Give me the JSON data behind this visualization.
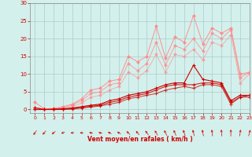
{
  "xlabel": "Vent moyen/en rafales ( km/h )",
  "xlim": [
    -0.5,
    23
  ],
  "ylim": [
    -1,
    30
  ],
  "yticks": [
    0,
    5,
    10,
    15,
    20,
    25,
    30
  ],
  "xticks": [
    0,
    1,
    2,
    3,
    4,
    5,
    6,
    7,
    8,
    9,
    10,
    11,
    12,
    13,
    14,
    15,
    16,
    17,
    18,
    19,
    20,
    21,
    22,
    23
  ],
  "background_color": "#d4f0ec",
  "grid_color": "#aacccc",
  "line_color_light": "#ff8888",
  "line_color_dark": "#cc0000",
  "series": {
    "light1": [
      2.0,
      0.2,
      0.3,
      0.8,
      1.5,
      3.0,
      5.5,
      6.0,
      8.0,
      8.5,
      15.0,
      13.5,
      15.0,
      23.5,
      14.5,
      20.5,
      19.0,
      26.5,
      18.5,
      23.0,
      21.5,
      23.0,
      10.0,
      10.5
    ],
    "light2": [
      0.5,
      0.1,
      0.2,
      0.5,
      1.2,
      2.5,
      4.5,
      5.0,
      7.0,
      7.5,
      13.0,
      11.0,
      13.0,
      19.0,
      12.5,
      18.0,
      17.0,
      20.0,
      16.5,
      21.5,
      20.0,
      22.5,
      9.0,
      10.5
    ],
    "light3": [
      0.0,
      0.0,
      0.1,
      0.3,
      0.8,
      1.8,
      3.5,
      4.0,
      5.5,
      6.5,
      10.5,
      9.0,
      11.0,
      15.5,
      10.5,
      15.5,
      15.0,
      17.0,
      14.0,
      19.0,
      18.0,
      21.0,
      7.5,
      10.0
    ],
    "dark1": [
      0.5,
      0.0,
      0.1,
      0.2,
      0.4,
      0.8,
      1.2,
      1.5,
      2.5,
      3.0,
      4.0,
      4.5,
      5.0,
      6.0,
      7.0,
      7.5,
      7.5,
      12.5,
      8.5,
      8.0,
      7.5,
      2.5,
      4.0,
      4.0
    ],
    "dark2": [
      0.0,
      0.0,
      0.0,
      0.1,
      0.3,
      0.6,
      0.9,
      1.2,
      2.0,
      2.5,
      3.5,
      4.0,
      4.5,
      5.5,
      6.5,
      7.0,
      7.0,
      7.0,
      7.5,
      7.5,
      7.0,
      2.0,
      3.5,
      4.0
    ],
    "dark3": [
      0.0,
      0.0,
      0.0,
      0.0,
      0.1,
      0.4,
      0.7,
      1.0,
      1.5,
      2.0,
      3.0,
      3.5,
      4.0,
      4.5,
      5.5,
      6.0,
      6.5,
      6.0,
      7.0,
      7.0,
      6.5,
      1.5,
      3.5,
      3.5
    ]
  },
  "wind_angles_deg": [
    225,
    230,
    240,
    255,
    265,
    270,
    280,
    280,
    290,
    295,
    305,
    310,
    315,
    320,
    325,
    330,
    335,
    340,
    345,
    350,
    355,
    0,
    10,
    20
  ]
}
